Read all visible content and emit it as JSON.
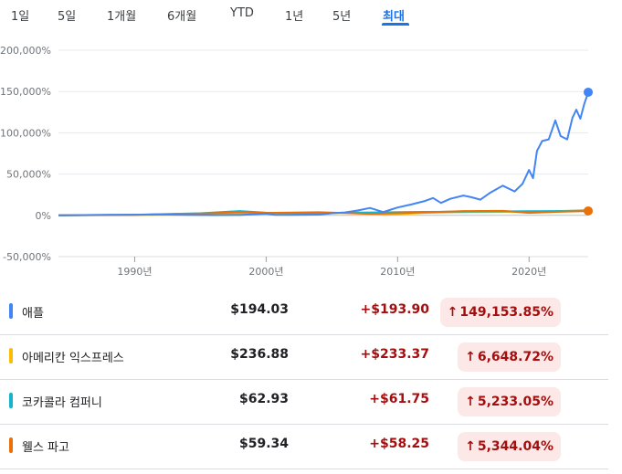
{
  "tabs": [
    {
      "label": "1일",
      "active": false
    },
    {
      "label": "5일",
      "active": false
    },
    {
      "label": "1개월",
      "active": false
    },
    {
      "label": "6개월",
      "active": false
    },
    {
      "label": "YTD",
      "active": false
    },
    {
      "label": "1년",
      "active": false
    },
    {
      "label": "5년",
      "active": false
    },
    {
      "label": "최대",
      "active": true
    }
  ],
  "chart_data": {
    "type": "line",
    "y_ticks": [
      "200,000%",
      "150,000%",
      "100,000%",
      "50,000%",
      "0%",
      "-50,000%"
    ],
    "y_tick_values": [
      200000,
      150000,
      100000,
      50000,
      0,
      -50000
    ],
    "ylim": [
      -50000,
      200000
    ],
    "x_ticks": [
      "1990년",
      "2000년",
      "2010년",
      "2020년"
    ],
    "x_tick_values": [
      1990,
      2000,
      2010,
      2020
    ],
    "xlim": [
      1984.2,
      2024.5
    ],
    "series": [
      {
        "name": "애플",
        "color": "#4285f4",
        "x": [
          1984.2,
          1986,
          1988,
          1990,
          1992,
          1994,
          1996,
          1998,
          2000,
          2000.7,
          2002,
          2004,
          2005,
          2006,
          2007,
          2007.9,
          2008.9,
          2009.5,
          2010,
          2011,
          2012,
          2012.7,
          2013.3,
          2014,
          2015,
          2015.6,
          2016.3,
          2017,
          2018,
          2018.9,
          2019.5,
          2020,
          2020.3,
          2020.6,
          2021,
          2021.5,
          2022,
          2022.4,
          2022.9,
          2023.3,
          2023.6,
          2023.9,
          2024.2,
          2024.5
        ],
        "y": [
          0,
          300,
          600,
          800,
          1000,
          600,
          300,
          400,
          2000,
          600,
          500,
          900,
          2500,
          3500,
          6000,
          9000,
          4000,
          7000,
          9500,
          13000,
          17000,
          21000,
          15000,
          20000,
          24000,
          22000,
          19000,
          27000,
          36000,
          29000,
          38000,
          55000,
          45000,
          78000,
          90000,
          92000,
          115000,
          96000,
          92000,
          118000,
          128000,
          117000,
          135000,
          149153
        ]
      },
      {
        "name": "아메리칸 익스프레스",
        "color": "#fbbc04",
        "x": [
          1984.2,
          1990,
          1995,
          2000,
          2003,
          2007,
          2009,
          2012,
          2015,
          2018,
          2020,
          2022,
          2024.5
        ],
        "y": [
          0,
          400,
          900,
          2500,
          2000,
          3300,
          700,
          3000,
          3800,
          4200,
          4500,
          5000,
          6648
        ]
      },
      {
        "name": "코카콜라 컴퍼니",
        "color": "#12b5cb",
        "x": [
          1984.2,
          1990,
          1995,
          1998,
          2000,
          2003,
          2008,
          2012,
          2016,
          2020,
          2022,
          2024.5
        ],
        "y": [
          0,
          800,
          2500,
          5200,
          3200,
          2700,
          3500,
          4200,
          4600,
          5000,
          5200,
          5233
        ]
      },
      {
        "name": "웰스 파고",
        "color": "#e8710a",
        "x": [
          1984.2,
          1990,
          1995,
          1998,
          2000,
          2004,
          2008,
          2009,
          2012,
          2015,
          2018,
          2020,
          2022,
          2024.5
        ],
        "y": [
          0,
          700,
          2200,
          3800,
          3000,
          3800,
          1800,
          2300,
          3500,
          5200,
          5400,
          3000,
          4200,
          5344
        ]
      }
    ]
  },
  "legend": [
    {
      "name": "애플",
      "color": "#4285f4",
      "price": "$194.03",
      "change": "+$193.90",
      "arrow": "↑",
      "percent": "149,153.85%"
    },
    {
      "name": "아메리칸 익스프레스",
      "color": "#fbbc04",
      "price": "$236.88",
      "change": "+$233.37",
      "arrow": "↑",
      "percent": "6,648.72%"
    },
    {
      "name": "코카콜라 컴퍼니",
      "color": "#12b5cb",
      "price": "$62.93",
      "change": "+$61.75",
      "arrow": "↑",
      "percent": "5,233.05%"
    },
    {
      "name": "웰스 파고",
      "color": "#e8710a",
      "price": "$59.34",
      "change": "+$58.25",
      "arrow": "↑",
      "percent": "5,344.04%"
    }
  ]
}
